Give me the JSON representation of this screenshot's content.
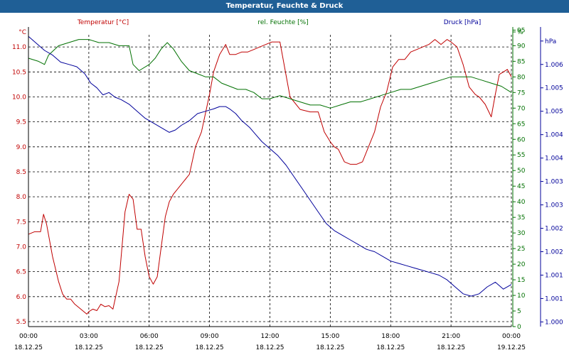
{
  "window": {
    "title": "Temperatur, Feuchte & Druck"
  },
  "colors": {
    "temperature": "#c00000",
    "humidity": "#007000",
    "pressure": "#00009a",
    "titlebar": "#1f5f96"
  },
  "chart_data": {
    "type": "line",
    "title": "Temperatur, Feuchte & Druck",
    "x_ticks": [
      {
        "h": 0,
        "time": "00:00",
        "date": "18.12.25"
      },
      {
        "h": 3,
        "time": "03:00",
        "date": "18.12.25"
      },
      {
        "h": 6,
        "time": "06:00",
        "date": "18.12.25"
      },
      {
        "h": 9,
        "time": "09:00",
        "date": "18.12.25"
      },
      {
        "h": 12,
        "time": "12:00",
        "date": "18.12.25"
      },
      {
        "h": 15,
        "time": "15:00",
        "date": "18.12.25"
      },
      {
        "h": 18,
        "time": "18:00",
        "date": "18.12.25"
      },
      {
        "h": 21,
        "time": "21:00",
        "date": "18.12.25"
      },
      {
        "h": 24,
        "time": "00:00",
        "date": "19.12.25"
      }
    ],
    "xlim": [
      0,
      24
    ],
    "axes": {
      "left": {
        "unit": "°C",
        "ylim": [
          5.4,
          11.4
        ],
        "ticks": [
          "5.5",
          "6.0",
          "6.5",
          "7.0",
          "7.5",
          "8.0",
          "8.5",
          "9.0",
          "9.5",
          "10.0",
          "10.5",
          "11.0"
        ]
      },
      "right1": {
        "unit": "%",
        "ylim": [
          0,
          96
        ],
        "ticks": [
          "0",
          "5",
          "10",
          "15",
          "20",
          "25",
          "30",
          "35",
          "40",
          "45",
          "50",
          "55",
          "60",
          "65",
          "70",
          "75",
          "80",
          "85",
          "90",
          "95",
          "%"
        ]
      },
      "right2": {
        "unit": "hPa",
        "ylim": [
          999.9,
          1006.3
        ],
        "tick_values": [
          1000.0,
          1000.5,
          1001.0,
          1001.5,
          1002.0,
          1002.5,
          1003.0,
          1003.5,
          1004.0,
          1004.5,
          1005.0,
          1005.5,
          1006.0
        ],
        "tick_labels": [
          "1.000",
          "1.001",
          "1.001",
          "1.002",
          "1.002",
          "1.003",
          "1.003",
          "1.004",
          "1.004",
          "1.005",
          "1.005",
          "1.006",
          "hPa"
        ]
      }
    },
    "series": [
      {
        "name": "Temperatur [°C]",
        "axis": "left",
        "color": "#c00000",
        "x": [
          0,
          0.3,
          0.6,
          0.75,
          0.9,
          1.2,
          1.5,
          1.7,
          1.9,
          2.1,
          2.3,
          2.6,
          2.9,
          3.0,
          3.2,
          3.4,
          3.6,
          3.8,
          4.0,
          4.2,
          4.5,
          4.8,
          5.0,
          5.2,
          5.4,
          5.6,
          5.8,
          6.0,
          6.2,
          6.4,
          6.6,
          6.8,
          7.0,
          7.2,
          7.4,
          7.6,
          7.8,
          8.0,
          8.3,
          8.6,
          9.0,
          9.2,
          9.5,
          9.8,
          10.0,
          10.3,
          10.6,
          10.9,
          11.2,
          11.5,
          11.8,
          12.1,
          12.5,
          13.0,
          13.5,
          14.0,
          14.4,
          14.7,
          15.0,
          15.2,
          15.4,
          15.7,
          16.0,
          16.3,
          16.6,
          16.9,
          17.2,
          17.5,
          17.8,
          18.1,
          18.4,
          18.7,
          19.0,
          19.3,
          19.6,
          19.9,
          20.2,
          20.5,
          20.8,
          21.0,
          21.3,
          21.6,
          21.9,
          22.2,
          22.4,
          22.7,
          23.0,
          23.2,
          23.4,
          23.6,
          23.8,
          24.0
        ],
        "values": [
          7.25,
          7.3,
          7.3,
          7.65,
          7.45,
          6.8,
          6.3,
          6.05,
          5.95,
          5.95,
          5.85,
          5.75,
          5.65,
          5.7,
          5.75,
          5.72,
          5.85,
          5.8,
          5.82,
          5.75,
          6.3,
          7.7,
          8.05,
          7.95,
          7.35,
          7.35,
          6.8,
          6.4,
          6.25,
          6.4,
          7.0,
          7.6,
          7.9,
          8.05,
          8.15,
          8.25,
          8.35,
          8.45,
          9.0,
          9.3,
          10.05,
          10.5,
          10.85,
          11.05,
          10.85,
          10.85,
          10.9,
          10.9,
          10.95,
          11.0,
          11.05,
          11.1,
          11.1,
          10.0,
          9.75,
          9.7,
          9.7,
          9.3,
          9.1,
          9.0,
          8.95,
          8.7,
          8.65,
          8.65,
          8.7,
          9.0,
          9.3,
          9.8,
          10.1,
          10.6,
          10.75,
          10.75,
          10.9,
          10.95,
          11.0,
          11.05,
          11.15,
          11.05,
          11.15,
          11.1,
          11.0,
          10.65,
          10.2,
          10.05,
          10.0,
          9.85,
          9.6,
          10.05,
          10.45,
          10.5,
          10.55,
          10.4
        ]
      },
      {
        "name": "rel. Feuchte [%]",
        "axis": "right1",
        "color": "#007000",
        "x": [
          0,
          0.5,
          0.8,
          1.0,
          1.5,
          2.0,
          2.5,
          3.0,
          3.5,
          4.0,
          4.5,
          5.0,
          5.2,
          5.5,
          6.0,
          6.3,
          6.6,
          6.9,
          7.2,
          7.6,
          8.0,
          8.4,
          8.8,
          9.2,
          9.6,
          10.0,
          10.4,
          10.8,
          11.2,
          11.6,
          12.0,
          12.5,
          13.0,
          13.5,
          14.0,
          14.5,
          15.0,
          15.5,
          16.0,
          16.5,
          17.0,
          17.5,
          18.0,
          18.5,
          19.0,
          19.5,
          20.0,
          20.5,
          21.0,
          21.5,
          22.0,
          22.5,
          23.0,
          23.5,
          24.0
        ],
        "values": [
          86,
          85,
          84,
          87,
          90,
          91,
          92,
          92,
          91,
          91,
          90,
          90,
          84,
          82,
          84,
          86,
          89,
          91,
          89,
          85,
          82,
          81,
          80,
          80,
          78,
          77,
          76,
          76,
          75,
          73,
          73,
          74,
          73,
          72,
          71,
          71,
          70,
          71,
          72,
          72,
          73,
          74,
          75,
          76,
          76,
          77,
          78,
          79,
          80,
          80,
          80,
          79,
          78,
          77,
          75
        ]
      },
      {
        "name": "Druck [hPa]",
        "axis": "right2",
        "color": "#00009a",
        "x": [
          0,
          0.4,
          0.8,
          1.2,
          1.6,
          2.0,
          2.4,
          2.8,
          3.1,
          3.4,
          3.7,
          4.0,
          4.3,
          4.6,
          5.0,
          5.4,
          5.8,
          6.2,
          6.6,
          7.0,
          7.3,
          7.6,
          8.0,
          8.4,
          8.8,
          9.2,
          9.5,
          9.8,
          10.0,
          10.3,
          10.6,
          11.0,
          11.3,
          11.6,
          12.0,
          12.4,
          12.8,
          13.2,
          13.6,
          14.0,
          14.4,
          14.8,
          15.2,
          15.6,
          16.0,
          16.4,
          16.8,
          17.2,
          17.6,
          18.0,
          18.4,
          18.8,
          19.2,
          19.6,
          20.0,
          20.4,
          20.8,
          21.2,
          21.6,
          22.0,
          22.4,
          22.8,
          23.2,
          23.6,
          24.0
        ],
        "values": [
          1006.1,
          1005.95,
          1005.8,
          1005.7,
          1005.55,
          1005.5,
          1005.45,
          1005.3,
          1005.1,
          1005.0,
          1004.85,
          1004.9,
          1004.8,
          1004.75,
          1004.65,
          1004.5,
          1004.35,
          1004.25,
          1004.15,
          1004.05,
          1004.1,
          1004.2,
          1004.3,
          1004.45,
          1004.5,
          1004.55,
          1004.6,
          1004.6,
          1004.55,
          1004.45,
          1004.3,
          1004.15,
          1004.0,
          1003.85,
          1003.7,
          1003.55,
          1003.35,
          1003.1,
          1002.85,
          1002.6,
          1002.35,
          1002.1,
          1001.95,
          1001.85,
          1001.75,
          1001.65,
          1001.55,
          1001.5,
          1001.4,
          1001.3,
          1001.25,
          1001.2,
          1001.15,
          1001.1,
          1001.05,
          1001.0,
          1000.9,
          1000.75,
          1000.6,
          1000.55,
          1000.6,
          1000.75,
          1000.85,
          1000.7,
          1000.8
        ]
      }
    ]
  }
}
